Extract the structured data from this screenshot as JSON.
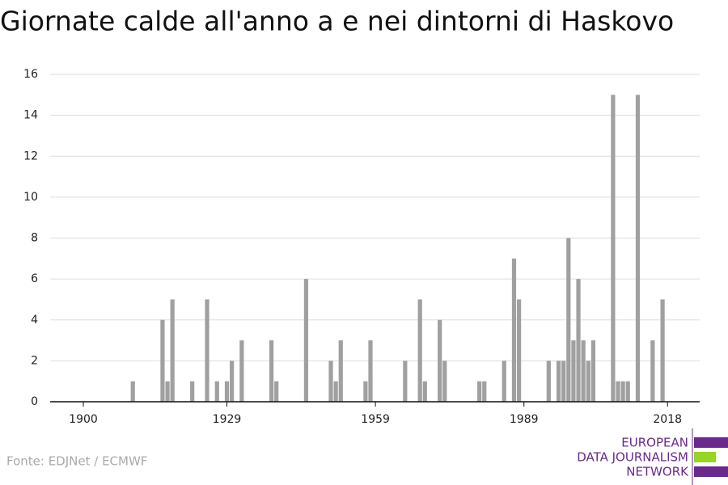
{
  "chart_data": {
    "type": "bar",
    "title": "Giornate calde all'anno a e nei dintorni di Haskovo",
    "source": "Fonte: EDJNet / ECMWF",
    "logo": [
      "EUROPEAN",
      "DATA JOURNALISM",
      "NETWORK"
    ],
    "color": "#a0a0a0",
    "x": [
      1910,
      1916,
      1917,
      1918,
      1922,
      1925,
      1927,
      1929,
      1930,
      1932,
      1938,
      1939,
      1945,
      1950,
      1951,
      1952,
      1957,
      1958,
      1965,
      1968,
      1969,
      1972,
      1973,
      1980,
      1981,
      1985,
      1987,
      1988,
      1994,
      1996,
      1997,
      1998,
      1999,
      2000,
      2001,
      2002,
      2003,
      2007,
      2008,
      2009,
      2010,
      2012,
      2015,
      2017
    ],
    "values": [
      1,
      4,
      1,
      5,
      1,
      5,
      1,
      1,
      2,
      3,
      3,
      1,
      6,
      2,
      1,
      3,
      1,
      3,
      2,
      5,
      1,
      4,
      2,
      1,
      1,
      2,
      7,
      5,
      2,
      2,
      2,
      8,
      3,
      6,
      3,
      2,
      3,
      15,
      1,
      1,
      1,
      15,
      3,
      5
    ],
    "xlim": [
      1893.3,
      2024.5
    ],
    "xticks": [
      1900,
      1929,
      1959,
      1989,
      2018
    ],
    "ylim": [
      0,
      16
    ],
    "yticks": [
      0,
      2,
      4,
      6,
      8,
      10,
      12,
      14,
      16
    ],
    "grid": true
  }
}
